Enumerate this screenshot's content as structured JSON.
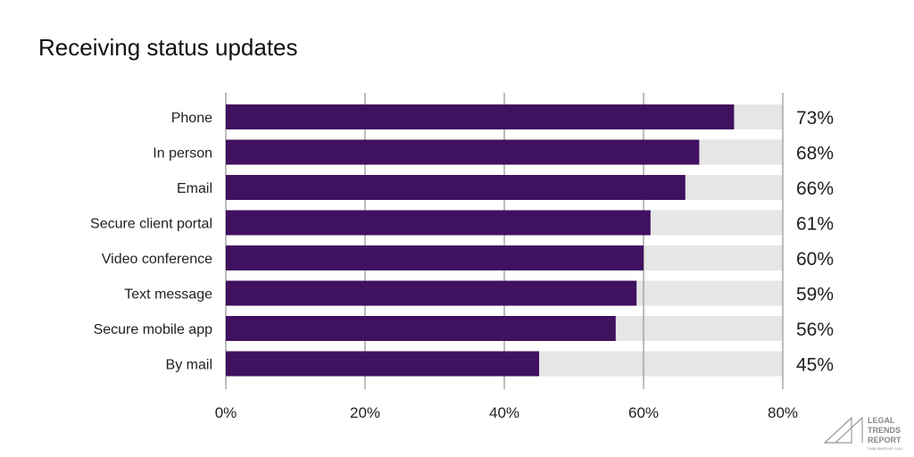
{
  "chart_data": {
    "type": "bar",
    "orientation": "horizontal",
    "title": "Receiving status updates",
    "categories": [
      "Phone",
      "In person",
      "Email",
      "Secure client portal",
      "Video conference",
      "Text message",
      "Secure mobile app",
      "By mail"
    ],
    "values": [
      73,
      68,
      66,
      61,
      60,
      59,
      56,
      45
    ],
    "data_labels": [
      "73%",
      "68%",
      "66%",
      "61%",
      "60%",
      "59%",
      "56%",
      "45%"
    ],
    "xlim": [
      0,
      80
    ],
    "xticks": [
      "0%",
      "20%",
      "40%",
      "60%",
      "80%"
    ],
    "grid": true,
    "colors": {
      "bar": "#40115f",
      "track": "#e6e6e6",
      "grid": "#999999"
    }
  },
  "logo": {
    "lines": [
      "LEGAL",
      "TRENDS",
      "REPORT"
    ],
    "sub": "PUBLISHED BY CLIO"
  }
}
